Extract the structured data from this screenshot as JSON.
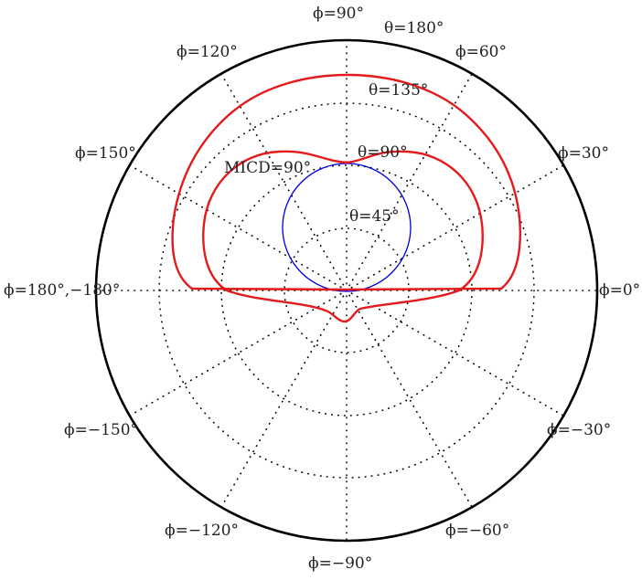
{
  "colors": {
    "outer_circle": "#000000",
    "grid": "#000000",
    "curve": "#e41a1c",
    "micd_circle": "#0000dd",
    "text": "#222222"
  },
  "phi_labels": [
    {
      "id": "phi-0",
      "text": "ϕ=0°"
    },
    {
      "id": "phi-30",
      "text": "ϕ=30°"
    },
    {
      "id": "phi-60",
      "text": "ϕ=60°"
    },
    {
      "id": "phi-90",
      "text": "ϕ=90°"
    },
    {
      "id": "phi-120",
      "text": "ϕ=120°"
    },
    {
      "id": "phi-150",
      "text": "ϕ=150°"
    },
    {
      "id": "phi-180",
      "text": "ϕ=180°,−180°"
    },
    {
      "id": "phi-m150",
      "text": "ϕ=−150°"
    },
    {
      "id": "phi-m120",
      "text": "ϕ=−120°"
    },
    {
      "id": "phi-m90",
      "text": "ϕ=−90°"
    },
    {
      "id": "phi-m60",
      "text": "ϕ=−60°"
    },
    {
      "id": "phi-m30",
      "text": "ϕ=−30°"
    }
  ],
  "theta_labels": [
    {
      "id": "theta-45",
      "text": "θ=45°"
    },
    {
      "id": "theta-90",
      "text": "θ=90°"
    },
    {
      "id": "theta-135",
      "text": "θ=135°"
    },
    {
      "id": "theta-180",
      "text": "θ=180°"
    }
  ],
  "micd_label": "MICD=90°"
}
